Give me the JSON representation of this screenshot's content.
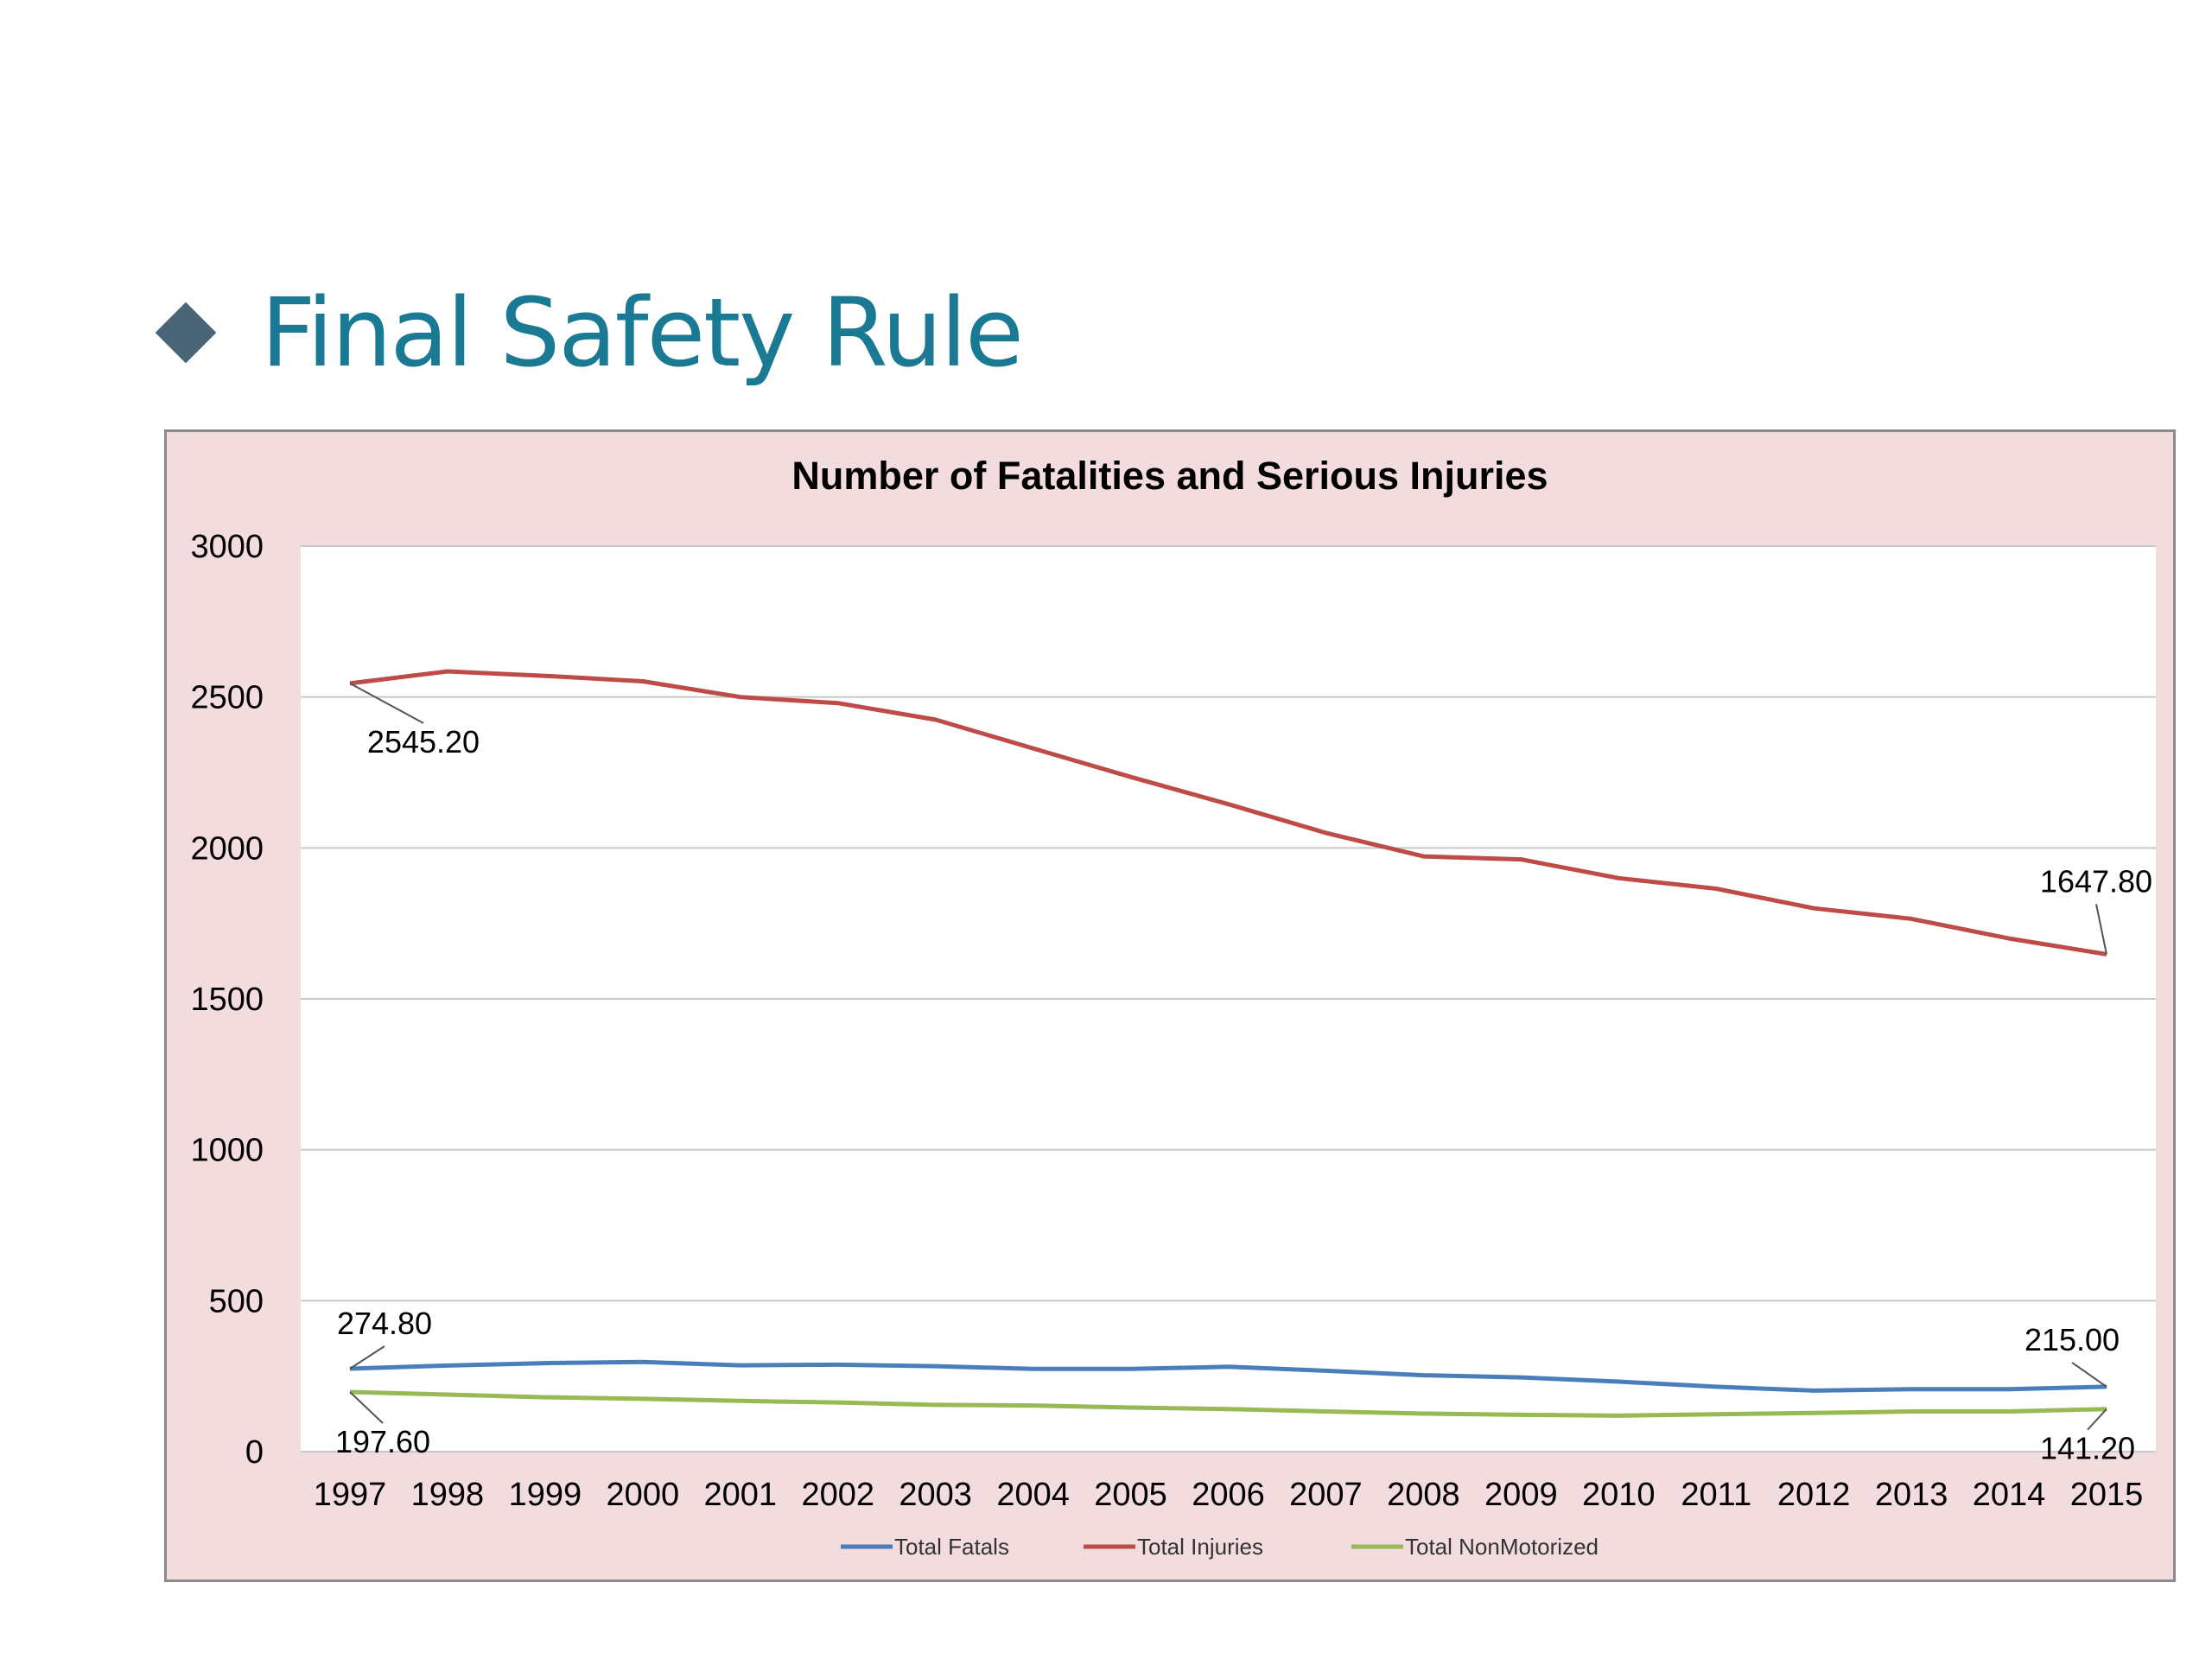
{
  "slide": {
    "title": "Final Safety Rule"
  },
  "colors": {
    "title": "#1b7a93",
    "bullet": "#4a6478",
    "chart_bg": "#f2dcdd",
    "plot_bg": "#ffffff",
    "grid": "#c8c8c8"
  },
  "chart_data": {
    "type": "line",
    "title": "Number of Fatalities and Serious Injuries",
    "xlabel": "",
    "ylabel": "",
    "ylim": [
      0,
      3000
    ],
    "yticks": [
      "0",
      "500",
      "1000",
      "1500",
      "2000",
      "2500",
      "3000"
    ],
    "grid": true,
    "legend_position": "bottom",
    "categories": [
      "1997",
      "1998",
      "1999",
      "2000",
      "2001",
      "2002",
      "2003",
      "2004",
      "2005",
      "2006",
      "2007",
      "2008",
      "2009",
      "2010",
      "2011",
      "2012",
      "2013",
      "2014",
      "2015"
    ],
    "series": [
      {
        "name": "Total Fatals",
        "color": "#4a7ebb",
        "values": [
          274.8,
          285,
          293,
          297,
          286,
          288,
          283,
          274,
          274,
          281,
          268,
          253,
          246,
          232,
          215,
          202,
          207,
          207,
          215
        ],
        "labels": {
          "first": "274.80",
          "last": "215.00"
        }
      },
      {
        "name": "Total Injuries",
        "color": "#be4b48",
        "values": [
          2545.2,
          2585,
          2570,
          2552,
          2500,
          2480,
          2425,
          2330,
          2235,
          2145,
          2050,
          1972,
          1962,
          1900,
          1865,
          1800,
          1765,
          1700,
          1647.8
        ],
        "labels": {
          "first": "2545.20",
          "last": "1647.80"
        }
      },
      {
        "name": "Total NonMotorized",
        "color": "#98b954",
        "values": [
          197.6,
          189,
          180,
          175,
          168,
          163,
          155,
          153,
          146,
          141,
          133,
          126,
          122,
          119,
          124,
          128,
          133,
          133,
          141.2
        ],
        "labels": {
          "first": "197.60",
          "last": "141.20"
        }
      }
    ]
  }
}
